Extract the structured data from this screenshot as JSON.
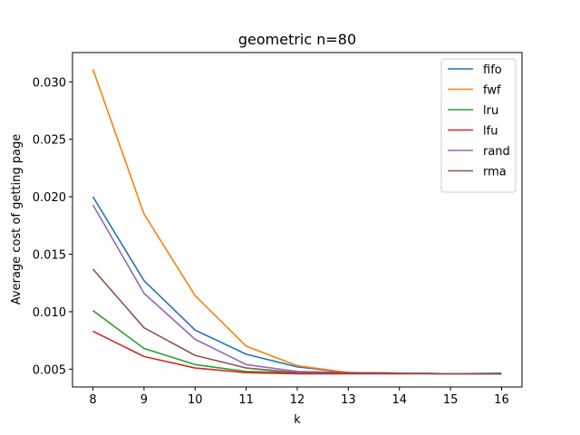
{
  "chart_data": {
    "type": "line",
    "title": "geometric n=80",
    "xlabel": "k",
    "ylabel": "Average cost of getting page",
    "x": [
      8,
      9,
      10,
      11,
      12,
      13,
      14,
      15,
      16
    ],
    "xlim": [
      7.6,
      16.4
    ],
    "ylim": [
      0.00345,
      0.03255
    ],
    "xticks": [
      8,
      9,
      10,
      11,
      12,
      13,
      14,
      15,
      16
    ],
    "yticks": [
      0.005,
      0.01,
      0.015,
      0.02,
      0.025,
      0.03
    ],
    "ytick_labels": [
      "0.005",
      "0.010",
      "0.015",
      "0.020",
      "0.025",
      "0.030"
    ],
    "grid": false,
    "legend_position": "top-right",
    "series": [
      {
        "name": "fifo",
        "color": "#1f77b4",
        "values": [
          0.02,
          0.0127,
          0.0084,
          0.0063,
          0.0052,
          0.0047,
          0.00465,
          0.0046,
          0.00465
        ]
      },
      {
        "name": "fwf",
        "color": "#ff7f0e",
        "values": [
          0.0311,
          0.0185,
          0.0114,
          0.007,
          0.0053,
          0.0047,
          0.00465,
          0.0046,
          0.0046
        ]
      },
      {
        "name": "lru",
        "color": "#2ca02c",
        "values": [
          0.0101,
          0.0068,
          0.0054,
          0.0048,
          0.0047,
          0.0047,
          0.00465,
          0.0046,
          0.0046
        ]
      },
      {
        "name": "lfu",
        "color": "#d62728",
        "values": [
          0.0083,
          0.0061,
          0.0051,
          0.0047,
          0.0046,
          0.0046,
          0.0046,
          0.0046,
          0.0046
        ]
      },
      {
        "name": "rand",
        "color": "#9467bd",
        "values": [
          0.0193,
          0.0116,
          0.0076,
          0.0054,
          0.0048,
          0.0047,
          0.00465,
          0.0046,
          0.0046
        ]
      },
      {
        "name": "rma",
        "color": "#8c564b",
        "values": [
          0.0137,
          0.0086,
          0.0062,
          0.0051,
          0.0047,
          0.0047,
          0.00465,
          0.0046,
          0.0046
        ]
      }
    ]
  }
}
